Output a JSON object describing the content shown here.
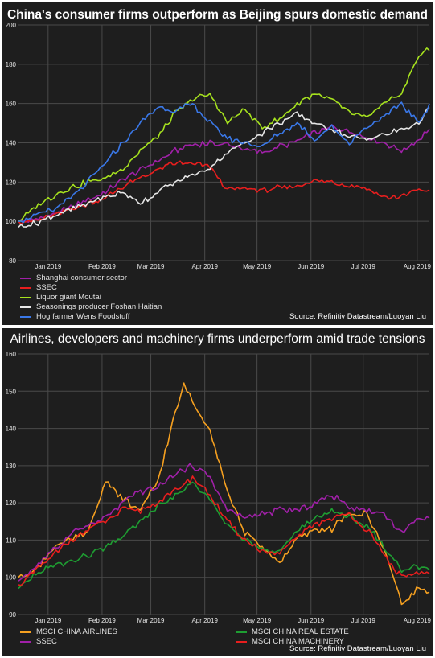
{
  "charts": [
    {
      "title": "China's consumer firms outperform as Beijing spurs domestic demand",
      "source": "Source: Refinitiv Datastream/Luoyan Liu"
    },
    {
      "title": "Airlines, developers and machinery firms underperform amid trade tensions",
      "source": "Source: Refinitiv Datastream/Luoyan Liu"
    }
  ],
  "chart_data": [
    {
      "type": "line",
      "title": "China's consumer firms outperform as Beijing spurs domestic demand",
      "x_ticks": [
        "Jan 2019",
        "Feb 2019",
        "Mar 2019",
        "Apr 2019",
        "May 2019",
        "Jun 2019",
        "Jul 2019",
        "Aug 2019"
      ],
      "ylim": [
        80,
        200
      ],
      "y_ticks": [
        "80",
        "100",
        "120",
        "140",
        "160",
        "180",
        "200"
      ],
      "grid": true,
      "legend_position": "bottom-left",
      "x_range": [
        0,
        236
      ],
      "x_tick_positions": [
        17,
        48,
        76,
        107,
        137,
        168,
        198,
        229
      ],
      "series": [
        {
          "name": "Shanghai consumer sector",
          "color": "#a020a8",
          "x": [
            0,
            10,
            20,
            30,
            40,
            50,
            60,
            70,
            80,
            90,
            100,
            110,
            120,
            130,
            140,
            150,
            160,
            170,
            180,
            190,
            200,
            210,
            220,
            230,
            236
          ],
          "y": [
            100,
            101,
            104,
            107,
            111,
            115,
            121,
            126,
            131,
            136,
            139,
            140,
            139,
            137,
            135,
            138,
            141,
            145,
            148,
            146,
            143,
            140,
            136,
            142,
            147
          ]
        },
        {
          "name": "SSEC",
          "color": "#e81e1e",
          "x": [
            0,
            10,
            20,
            30,
            40,
            50,
            60,
            70,
            80,
            90,
            100,
            110,
            120,
            130,
            140,
            150,
            160,
            170,
            180,
            190,
            200,
            210,
            220,
            230,
            236
          ],
          "y": [
            100,
            100,
            103,
            106,
            109,
            112,
            118,
            122,
            126,
            130,
            129,
            128,
            116,
            117,
            116,
            117,
            118,
            121,
            120,
            118,
            117,
            112,
            113,
            116,
            116
          ]
        },
        {
          "name": "Liquor giant Moutai",
          "color": "#a6e21e",
          "x": [
            0,
            10,
            20,
            30,
            40,
            50,
            60,
            70,
            80,
            90,
            100,
            110,
            120,
            130,
            140,
            150,
            160,
            170,
            180,
            190,
            200,
            210,
            220,
            230,
            236
          ],
          "y": [
            100,
            107,
            113,
            117,
            120,
            122,
            127,
            136,
            143,
            155,
            162,
            165,
            150,
            157,
            148,
            152,
            160,
            165,
            162,
            155,
            153,
            160,
            165,
            185,
            187
          ]
        },
        {
          "name": "Seasonings producer Foshan Haitian",
          "color": "#e6e6e6",
          "x": [
            0,
            10,
            20,
            30,
            40,
            50,
            60,
            70,
            80,
            90,
            100,
            110,
            120,
            130,
            140,
            150,
            160,
            170,
            180,
            190,
            200,
            210,
            220,
            230,
            236
          ],
          "y": [
            97,
            99,
            103,
            106,
            109,
            112,
            115,
            109,
            115,
            120,
            124,
            127,
            135,
            140,
            145,
            150,
            155,
            150,
            147,
            143,
            142,
            144,
            147,
            150,
            158
          ]
        },
        {
          "name": "Hog farmer Wens Foodstuff",
          "color": "#3a78e8",
          "x": [
            0,
            10,
            20,
            30,
            40,
            50,
            60,
            70,
            80,
            90,
            100,
            110,
            120,
            130,
            140,
            150,
            160,
            170,
            180,
            190,
            200,
            210,
            220,
            230,
            236
          ],
          "y": [
            100,
            103,
            106,
            112,
            120,
            130,
            140,
            150,
            158,
            156,
            160,
            150,
            142,
            140,
            138,
            145,
            150,
            142,
            148,
            140,
            148,
            153,
            160,
            150,
            160
          ]
        }
      ]
    },
    {
      "type": "line",
      "title": "Airlines, developers and machinery firms underperform amid trade tensions",
      "x_ticks": [
        "Jan 2019",
        "Feb 2019",
        "Mar 2019",
        "Apr 2019",
        "May 2019",
        "Jun 2019",
        "Jul 2019",
        "Aug 2019"
      ],
      "ylim": [
        90,
        160
      ],
      "y_ticks": [
        "90",
        "100",
        "110",
        "120",
        "130",
        "140",
        "150",
        "160"
      ],
      "grid": true,
      "legend_position": "bottom",
      "x_range": [
        0,
        236
      ],
      "x_tick_positions": [
        17,
        48,
        76,
        107,
        137,
        168,
        198,
        229
      ],
      "series": [
        {
          "name": "MSCI CHINA AIRLINES",
          "color": "#f5a020",
          "x": [
            0,
            10,
            20,
            30,
            40,
            50,
            60,
            70,
            80,
            90,
            95,
            100,
            105,
            110,
            120,
            130,
            140,
            150,
            160,
            170,
            180,
            190,
            200,
            210,
            220,
            230,
            236
          ],
          "y": [
            100,
            102,
            108,
            110,
            112,
            126,
            121,
            118,
            126,
            144,
            152,
            147,
            143,
            140,
            123,
            112,
            108,
            104,
            110,
            113,
            113,
            117,
            117,
            108,
            93,
            97,
            96
          ]
        },
        {
          "name": "SSEC",
          "color": "#a020a8",
          "x": [
            0,
            10,
            20,
            30,
            40,
            50,
            60,
            70,
            80,
            90,
            100,
            110,
            120,
            130,
            140,
            150,
            160,
            170,
            180,
            190,
            200,
            210,
            220,
            230,
            236
          ],
          "y": [
            99,
            103,
            107,
            112,
            114,
            116,
            120,
            123,
            124,
            128,
            130,
            127,
            118,
            116,
            117,
            118,
            118,
            120,
            122,
            119,
            118,
            117,
            112,
            116,
            116
          ]
        },
        {
          "name": "MSCI CHINA REAL ESTATE",
          "color": "#1e9e32",
          "x": [
            0,
            10,
            20,
            30,
            40,
            50,
            60,
            70,
            80,
            90,
            100,
            110,
            120,
            130,
            140,
            150,
            160,
            170,
            180,
            190,
            200,
            210,
            220,
            230,
            236
          ],
          "y": [
            97,
            101,
            103,
            104,
            106,
            108,
            111,
            115,
            119,
            122,
            125,
            121,
            114,
            110,
            108,
            107,
            112,
            116,
            118,
            116,
            114,
            108,
            102,
            103,
            102
          ]
        },
        {
          "name": "MSCI CHINA MACHINERY",
          "color": "#e81e1e",
          "x": [
            0,
            10,
            20,
            30,
            40,
            50,
            60,
            70,
            80,
            90,
            100,
            110,
            120,
            130,
            140,
            150,
            160,
            170,
            180,
            190,
            200,
            210,
            220,
            230,
            236
          ],
          "y": [
            98,
            102,
            106,
            110,
            113,
            115,
            118,
            118,
            120,
            123,
            127,
            122,
            115,
            110,
            107,
            106,
            111,
            114,
            116,
            117,
            113,
            106,
            100,
            101,
            101
          ]
        }
      ]
    }
  ]
}
